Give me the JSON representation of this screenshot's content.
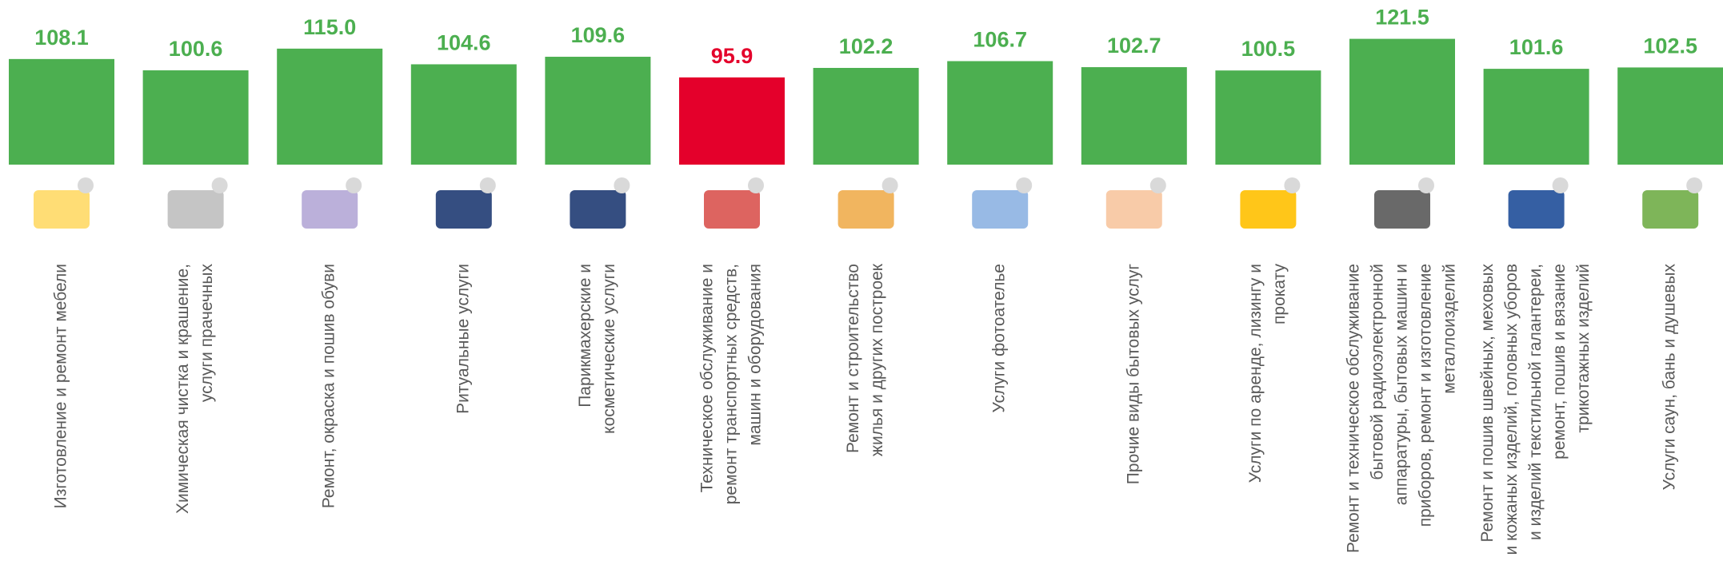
{
  "chart_data": {
    "type": "bar",
    "categories": [
      [
        "Изготовление и ремонт  мебели"
      ],
      [
        "Химическая чистка и  крашение,",
        "услуги прачечных"
      ],
      [
        "Ремонт, окраска и пошив обуви"
      ],
      [
        "Ритуальные услуги"
      ],
      [
        "Парикмахерские и",
        "косметические услуги"
      ],
      [
        "Техническое обслуживание и",
        "ремонт транспортных средств,",
        "машин и оборудования"
      ],
      [
        "Ремонт и строительство",
        "жилья и других построек"
      ],
      [
        "Услуги фотоателье"
      ],
      [
        "Прочие виды бытовых услуг"
      ],
      [
        "Услуги по аренде, лизингу и",
        "прокату"
      ],
      [
        "Ремонт и техническое обслуживание",
        "бытовой радиоэлектронной",
        "аппаратуры, бытовых машин и",
        "приборов, ремонт и изготовление",
        "металлоизделий"
      ],
      [
        "Ремонт и пошив  швейных, меховых",
        "и кожаных изделий, головных уборов",
        "и изделий текстильной галантереи,",
        "ремонт, пошив и вязание",
        "трикотажных изделий"
      ],
      [
        "Услуги  саун, бань и душевых"
      ]
    ],
    "values": [
      108.1,
      100.6,
      115.0,
      104.6,
      109.6,
      95.9,
      102.2,
      106.7,
      102.7,
      100.5,
      121.5,
      101.6,
      102.5
    ],
    "value_labels": [
      "108.1",
      "100.6",
      "115.0",
      "104.6",
      "109.6",
      "95.9",
      "102.2",
      "106.7",
      "102.7",
      "100.5",
      "121.5",
      "101.6",
      "102.5"
    ],
    "colors": [
      "#4caf50",
      "#4caf50",
      "#4caf50",
      "#4caf50",
      "#4caf50",
      "#e4002b",
      "#4caf50",
      "#4caf50",
      "#4caf50",
      "#4caf50",
      "#4caf50",
      "#4caf50",
      "#4caf50"
    ],
    "ylim": [
      38,
      125
    ]
  }
}
